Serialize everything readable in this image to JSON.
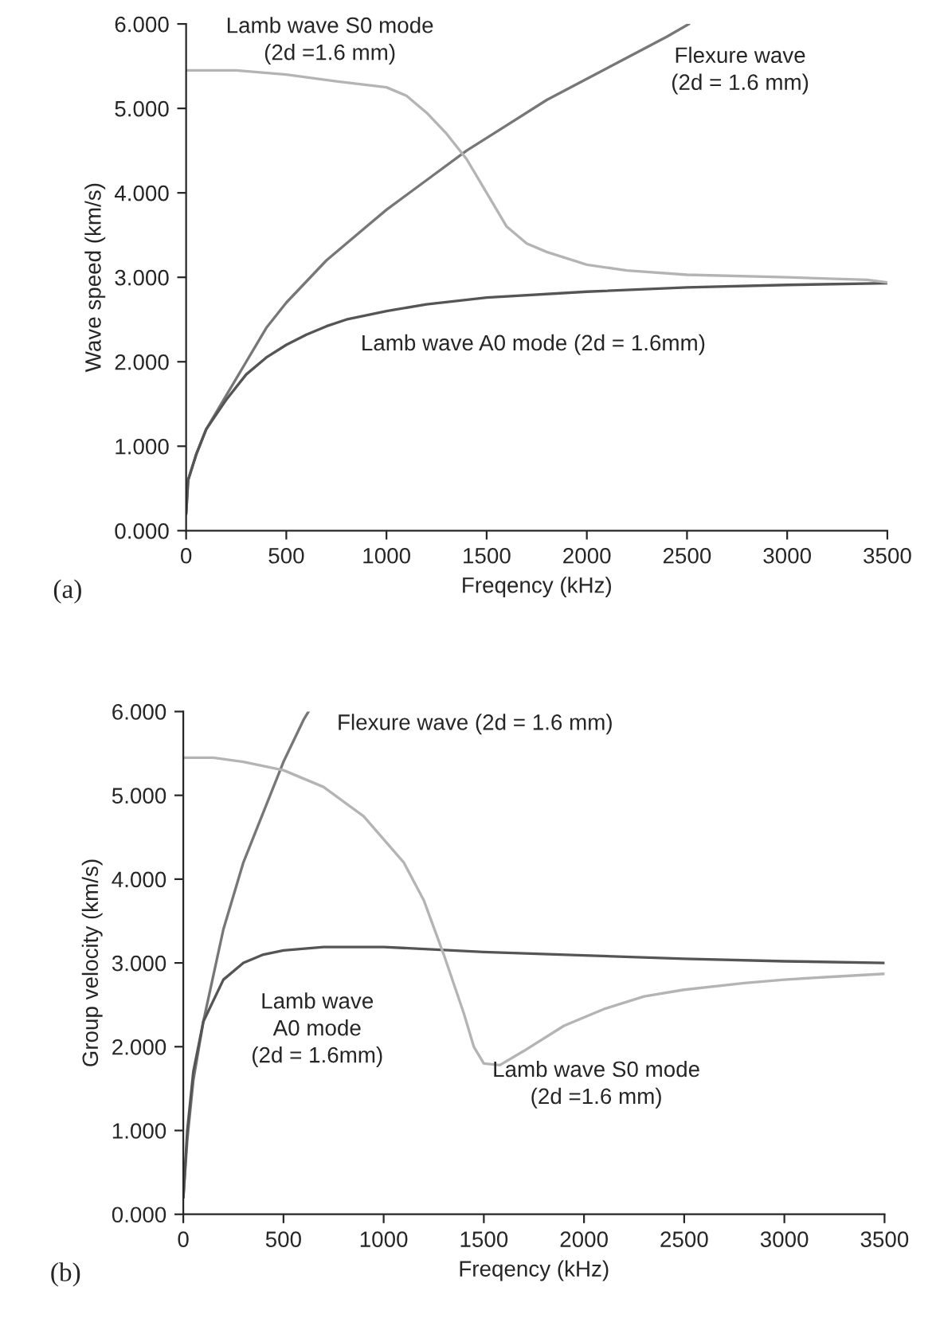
{
  "chart_data": [
    {
      "type": "line",
      "xlabel": "Freqency (kHz)",
      "ylabel": "Wave speed (km/s)",
      "xlim": [
        0,
        3500
      ],
      "ylim": [
        0,
        6
      ],
      "xticks": [
        0,
        500,
        1000,
        1500,
        2000,
        2500,
        3000,
        3500
      ],
      "yticks": [
        {
          "value": 0,
          "label": "0.000"
        },
        {
          "value": 1,
          "label": "1.000"
        },
        {
          "value": 2,
          "label": "2.000"
        },
        {
          "value": 3,
          "label": "3.000"
        },
        {
          "value": 4,
          "label": "4.000"
        },
        {
          "value": 5,
          "label": "5.000"
        },
        {
          "value": 6,
          "label": "6.000"
        }
      ],
      "grid": false,
      "marker": "none",
      "line_style": "solid",
      "annotations": [
        "(a)"
      ],
      "series": [
        {
          "name": "Flexure wave\n(2d = 1.6 mm)",
          "color": "#777777",
          "x": [
            0,
            10,
            50,
            100,
            200,
            300,
            400,
            500,
            600,
            700,
            800,
            900,
            1000,
            1200,
            1400,
            1600,
            1800,
            2000,
            2200,
            2400,
            2510
          ],
          "values": [
            0.2,
            0.6,
            0.9,
            1.2,
            1.6,
            2.0,
            2.4,
            2.7,
            2.95,
            3.2,
            3.4,
            3.6,
            3.8,
            4.15,
            4.5,
            4.8,
            5.1,
            5.35,
            5.6,
            5.85,
            6.0
          ]
        },
        {
          "name": "Lamb wave A0 mode (2d = 1.6mm)",
          "color": "#555555",
          "x": [
            0,
            10,
            50,
            100,
            200,
            300,
            400,
            500,
            600,
            700,
            800,
            1000,
            1200,
            1500,
            2000,
            2500,
            3000,
            3500
          ],
          "values": [
            0.2,
            0.6,
            0.9,
            1.2,
            1.55,
            1.85,
            2.05,
            2.2,
            2.32,
            2.42,
            2.5,
            2.6,
            2.68,
            2.76,
            2.83,
            2.88,
            2.91,
            2.93
          ]
        },
        {
          "name": "Lamb wave S0 mode\n(2d =1.6 mm)",
          "color": "#b4b4b4",
          "x": [
            0,
            250,
            500,
            750,
            1000,
            1100,
            1200,
            1300,
            1400,
            1500,
            1600,
            1700,
            1800,
            2000,
            2200,
            2500,
            3000,
            3400,
            3500
          ],
          "values": [
            5.45,
            5.45,
            5.4,
            5.32,
            5.25,
            5.15,
            4.95,
            4.7,
            4.4,
            4.0,
            3.6,
            3.4,
            3.3,
            3.15,
            3.08,
            3.03,
            3.0,
            2.97,
            2.94
          ]
        }
      ]
    },
    {
      "type": "line",
      "xlabel": "Freqency (kHz)",
      "ylabel": "Group velocity (km/s)",
      "xlim": [
        0,
        3500
      ],
      "ylim": [
        0,
        6
      ],
      "xticks": [
        0,
        500,
        1000,
        1500,
        2000,
        2500,
        3000,
        3500
      ],
      "yticks": [
        {
          "value": 0,
          "label": "0.000"
        },
        {
          "value": 1,
          "label": "1.000"
        },
        {
          "value": 2,
          "label": "2.000"
        },
        {
          "value": 3,
          "label": "3.000"
        },
        {
          "value": 4,
          "label": "4.000"
        },
        {
          "value": 5,
          "label": "5.000"
        },
        {
          "value": 6,
          "label": "6.000"
        }
      ],
      "grid": false,
      "marker": "none",
      "line_style": "solid",
      "annotations": [
        "(b)"
      ],
      "series": [
        {
          "name": "Flexure wave (2d = 1.6 mm)",
          "color": "#777777",
          "x": [
            0,
            20,
            50,
            100,
            200,
            300,
            400,
            500,
            600,
            625
          ],
          "values": [
            0.2,
            0.9,
            1.6,
            2.3,
            3.4,
            4.2,
            4.8,
            5.4,
            5.9,
            6.0
          ]
        },
        {
          "name": "Lamb wave\nA0 mode\n(2d = 1.6mm)",
          "color": "#555555",
          "x": [
            0,
            20,
            50,
            100,
            200,
            300,
            400,
            500,
            700,
            1000,
            1500,
            2000,
            2500,
            3000,
            3500
          ],
          "values": [
            0.2,
            1.0,
            1.7,
            2.3,
            2.8,
            3.0,
            3.1,
            3.15,
            3.19,
            3.19,
            3.13,
            3.09,
            3.05,
            3.02,
            3.0
          ]
        },
        {
          "name": "Lamb wave S0 mode\n(2d =1.6 mm)",
          "color": "#b4b4b4",
          "x": [
            0,
            150,
            300,
            500,
            700,
            900,
            1100,
            1200,
            1300,
            1400,
            1450,
            1500,
            1540,
            1580,
            1700,
            1900,
            2100,
            2300,
            2500,
            2800,
            3000,
            3200,
            3500
          ],
          "values": [
            5.45,
            5.45,
            5.4,
            5.3,
            5.1,
            4.75,
            4.2,
            3.75,
            3.1,
            2.4,
            2.0,
            1.8,
            null,
            1.78,
            1.95,
            2.25,
            2.45,
            2.6,
            2.68,
            2.76,
            2.8,
            2.83,
            2.87
          ]
        }
      ]
    }
  ]
}
